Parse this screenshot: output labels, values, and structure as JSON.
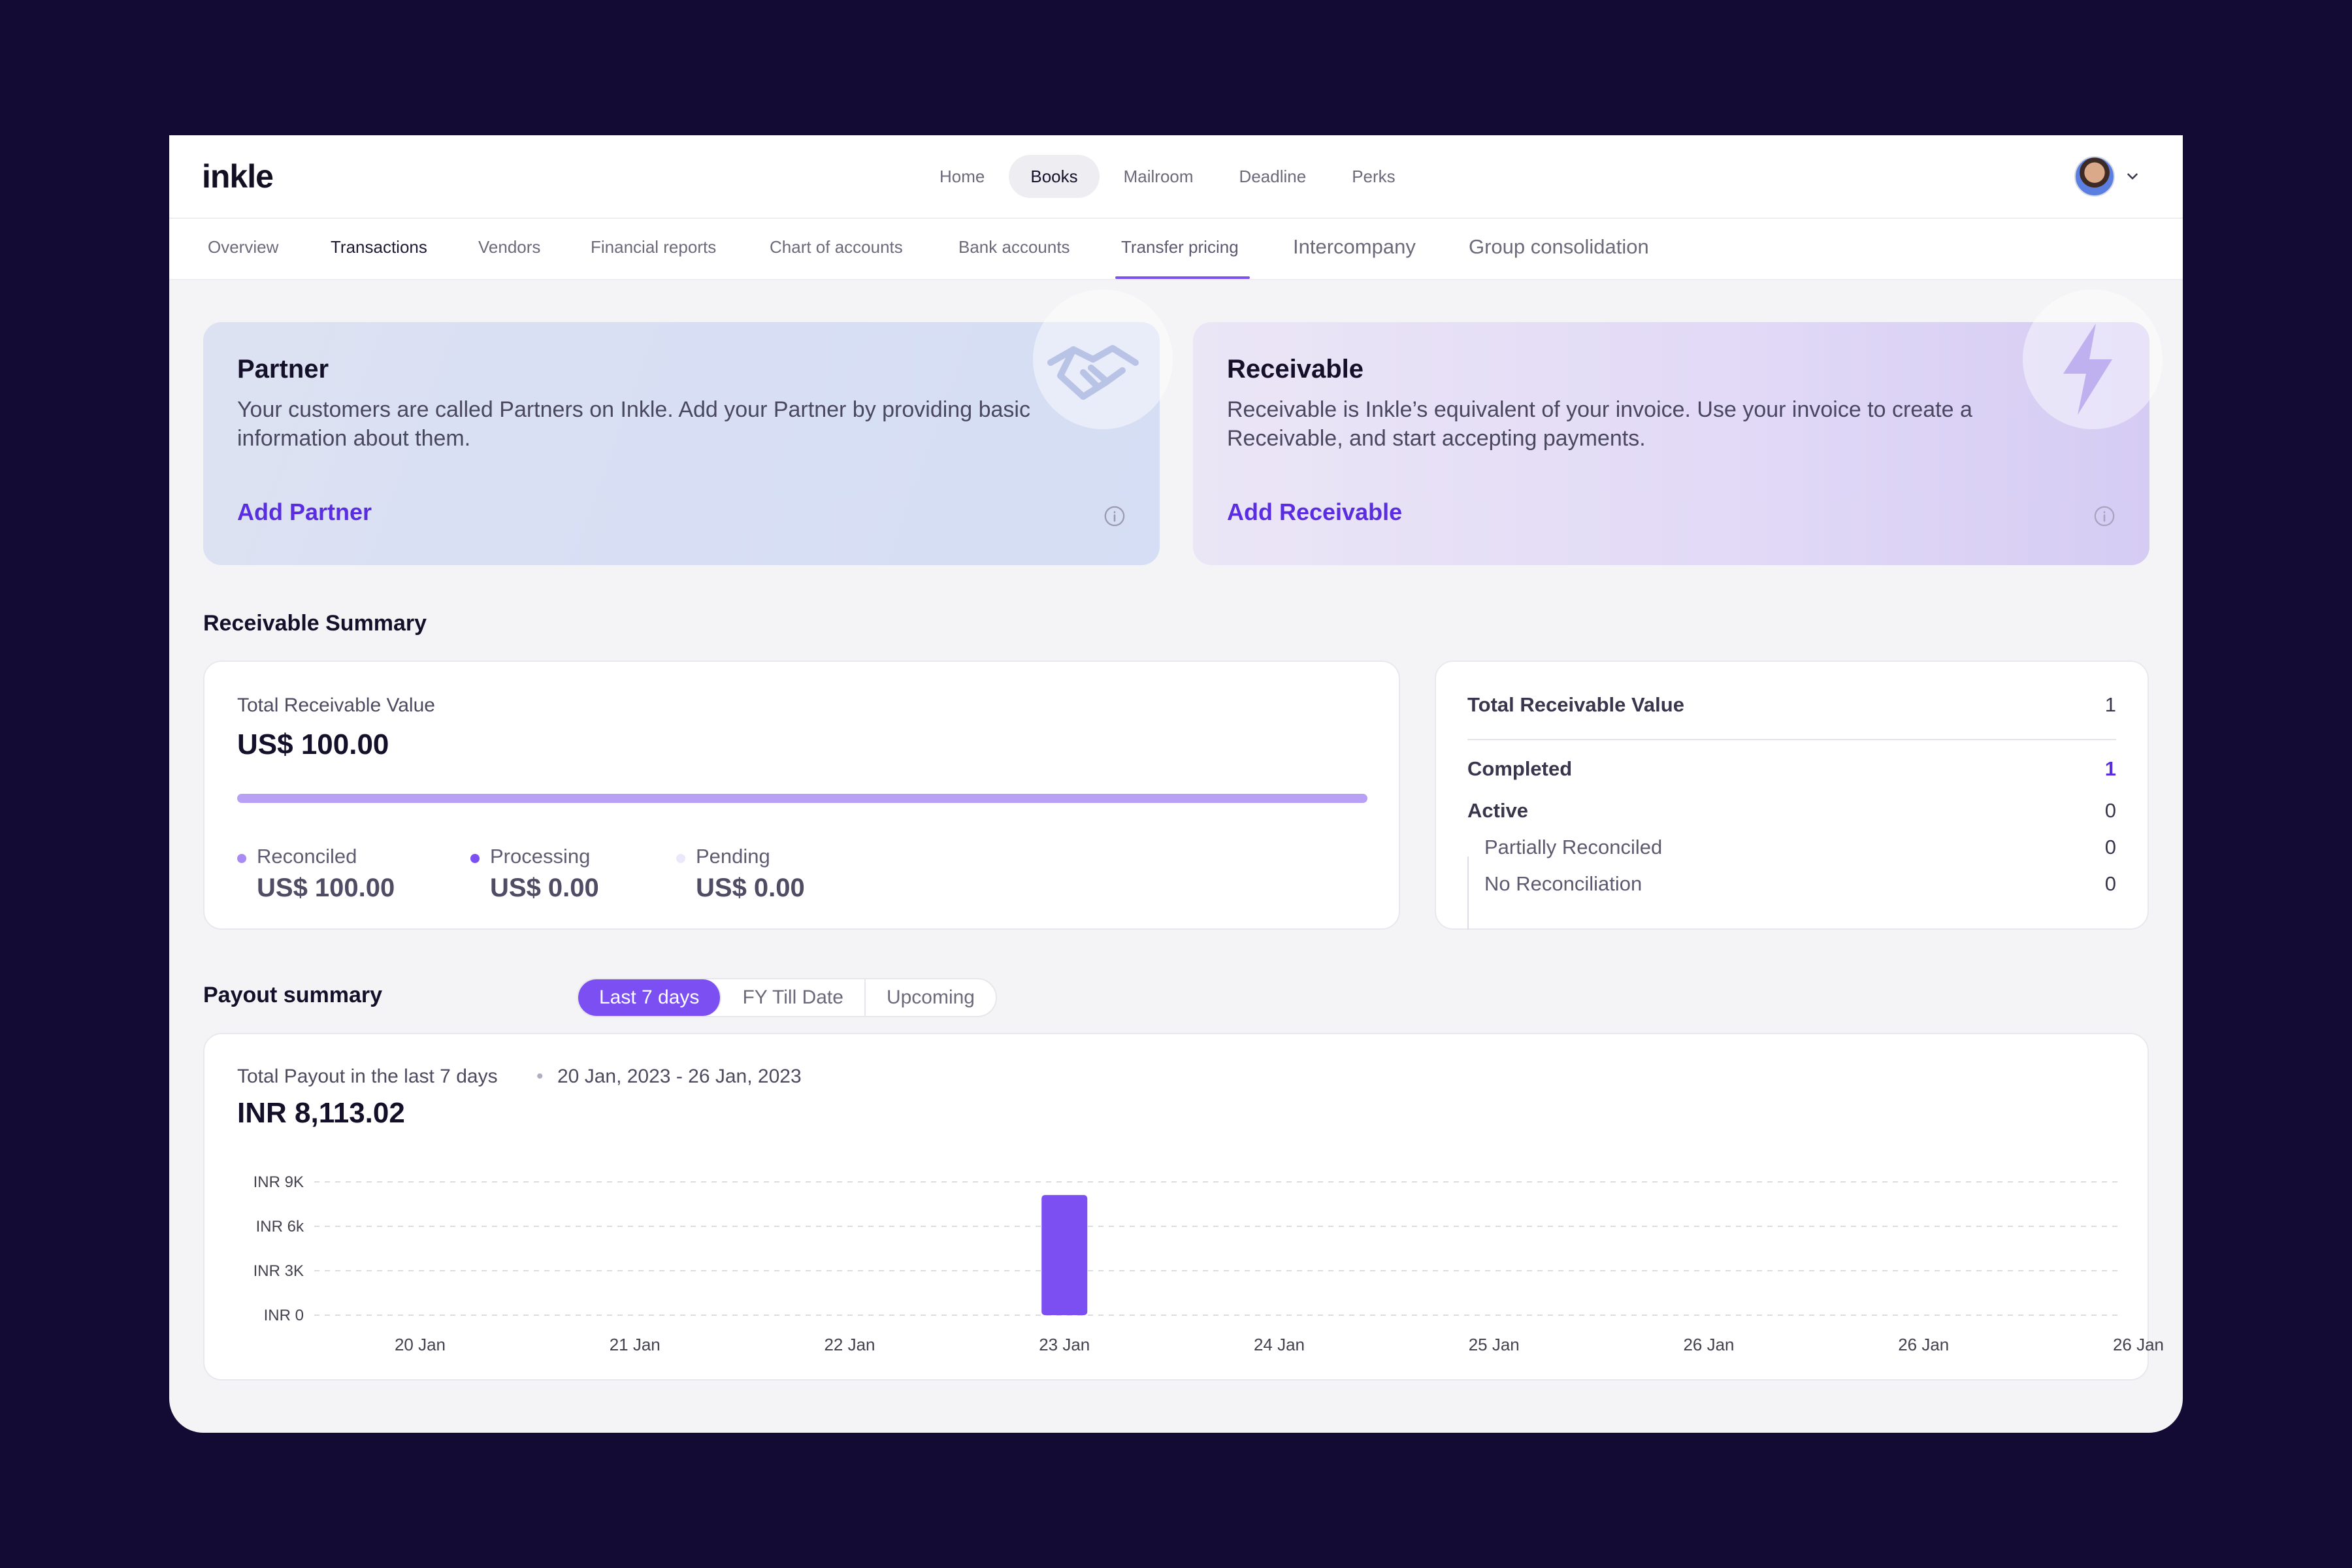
{
  "header": {
    "logo": "inkle",
    "nav": [
      "Home",
      "Books",
      "Mailroom",
      "Deadline",
      "Perks"
    ],
    "active_nav": "Books"
  },
  "subnav": {
    "items": [
      "Overview",
      "Transactions",
      "Vendors",
      "Financial reports",
      "Chart of accounts",
      "Bank accounts",
      "Transfer pricing",
      "Intercompany",
      "Group consolidation"
    ],
    "active": "Transfer pricing"
  },
  "promo": {
    "partner": {
      "title": "Partner",
      "description": "Your customers are called Partners on Inkle. Add your Partner by providing basic information about them.",
      "cta": "Add Partner"
    },
    "receivable": {
      "title": "Receivable",
      "description": "Receivable is Inkle’s equivalent of your invoice. Use your invoice to create a Receivable, and start accepting payments.",
      "cta": "Add Receivable"
    }
  },
  "receivable_summary": {
    "title": "Receivable Summary",
    "total_label": "Total Receivable Value",
    "total_value": "US$ 100.00",
    "progress_reconciled_fraction": 1.0,
    "legend": [
      {
        "name": "Reconciled",
        "value": "US$ 100.00",
        "color": "#a98bf2"
      },
      {
        "name": "Processing",
        "value": "US$ 0.00",
        "color": "#7c4ff2"
      },
      {
        "name": "Pending",
        "value": "US$ 0.00",
        "color": "#ece8fb"
      }
    ],
    "status": {
      "header_label": "Total Receivable Value",
      "header_value": "1",
      "completed_label": "Completed",
      "completed_value": "1",
      "active_label": "Active",
      "active_value": "0",
      "partial_label": "Partially Reconciled",
      "partial_value": "0",
      "norec_label": "No Reconciliation",
      "norec_value": "0"
    }
  },
  "payout": {
    "title": "Payout summary",
    "tabs": [
      "Last 7 days",
      "FY Till Date",
      "Upcoming"
    ],
    "active_tab": "Last 7 days",
    "total_label": "Total Payout in the last 7 days",
    "date_range": "20 Jan, 2023 - 26 Jan, 2023",
    "total_value": "INR 8,113.02"
  },
  "colors": {
    "accent": "#7c4ff2",
    "cta": "#5a2ee0",
    "page_bg": "#140b35"
  },
  "chart_data": {
    "type": "bar",
    "categories": [
      "20 Jan",
      "21 Jan",
      "22 Jan",
      "23 Jan",
      "24 Jan",
      "25 Jan",
      "26 Jan",
      "26 Jan",
      "26 Jan"
    ],
    "values": [
      0,
      0,
      0,
      8113.02,
      0,
      0,
      0,
      0,
      0
    ],
    "y_ticks": [
      "INR 0",
      "INR 3K",
      "INR 6k",
      "INR 9K"
    ],
    "y_tick_values": [
      0,
      3000,
      6000,
      9000
    ],
    "ylim": [
      0,
      9000
    ],
    "grid": true,
    "bar_color": "#7c4ff2"
  }
}
